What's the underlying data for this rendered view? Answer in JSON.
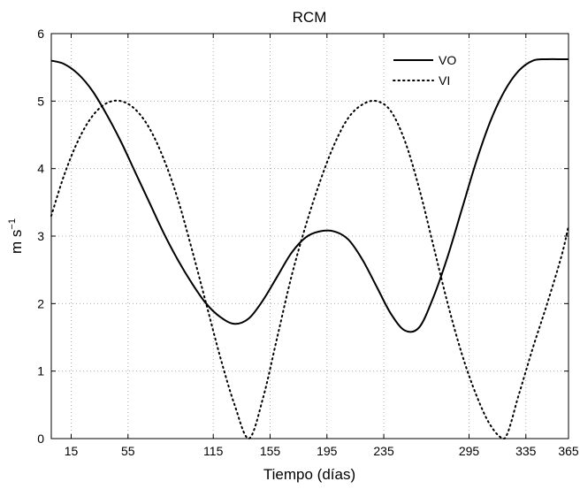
{
  "chart_data": {
    "type": "line",
    "title": "RCM",
    "xlabel": "Tiempo (días)",
    "ylabel": "m s",
    "ylabel_sup": "−1",
    "xlim": [
      1,
      365
    ],
    "ylim": [
      0,
      6
    ],
    "xticks": [
      15,
      55,
      115,
      155,
      195,
      235,
      295,
      335,
      365
    ],
    "yticks": [
      0,
      1,
      2,
      3,
      4,
      5,
      6
    ],
    "grid": true,
    "legend_position": "top-right",
    "series": [
      {
        "name": "VO",
        "style": "solid",
        "x": [
          1,
          10,
          20,
          30,
          40,
          50,
          60,
          70,
          80,
          90,
          100,
          110,
          120,
          130,
          140,
          150,
          160,
          170,
          180,
          190,
          200,
          210,
          220,
          230,
          240,
          250,
          260,
          270,
          280,
          290,
          300,
          310,
          320,
          330,
          340,
          350,
          360,
          365
        ],
        "y": [
          5.6,
          5.55,
          5.4,
          5.15,
          4.8,
          4.4,
          3.95,
          3.5,
          3.05,
          2.65,
          2.3,
          2.0,
          1.8,
          1.7,
          1.78,
          2.05,
          2.4,
          2.75,
          2.98,
          3.07,
          3.07,
          2.95,
          2.65,
          2.25,
          1.85,
          1.6,
          1.65,
          2.1,
          2.7,
          3.4,
          4.1,
          4.7,
          5.15,
          5.45,
          5.6,
          5.62,
          5.62,
          5.62
        ]
      },
      {
        "name": "VI",
        "style": "dotted",
        "x": [
          1,
          10,
          20,
          30,
          40,
          50,
          60,
          70,
          80,
          90,
          100,
          110,
          120,
          130,
          140,
          150,
          160,
          170,
          180,
          190,
          200,
          210,
          220,
          230,
          240,
          250,
          260,
          270,
          280,
          290,
          300,
          310,
          320,
          330,
          340,
          350,
          360,
          365
        ],
        "y": [
          3.3,
          3.9,
          4.42,
          4.78,
          4.97,
          5.0,
          4.88,
          4.6,
          4.15,
          3.55,
          2.8,
          2.0,
          1.2,
          0.5,
          0.0,
          0.6,
          1.5,
          2.4,
          3.15,
          3.8,
          4.35,
          4.75,
          4.95,
          5.0,
          4.85,
          4.4,
          3.7,
          2.85,
          2.0,
          1.25,
          0.65,
          0.2,
          0.0,
          0.65,
          1.35,
          2.0,
          2.7,
          3.15
        ]
      }
    ]
  }
}
